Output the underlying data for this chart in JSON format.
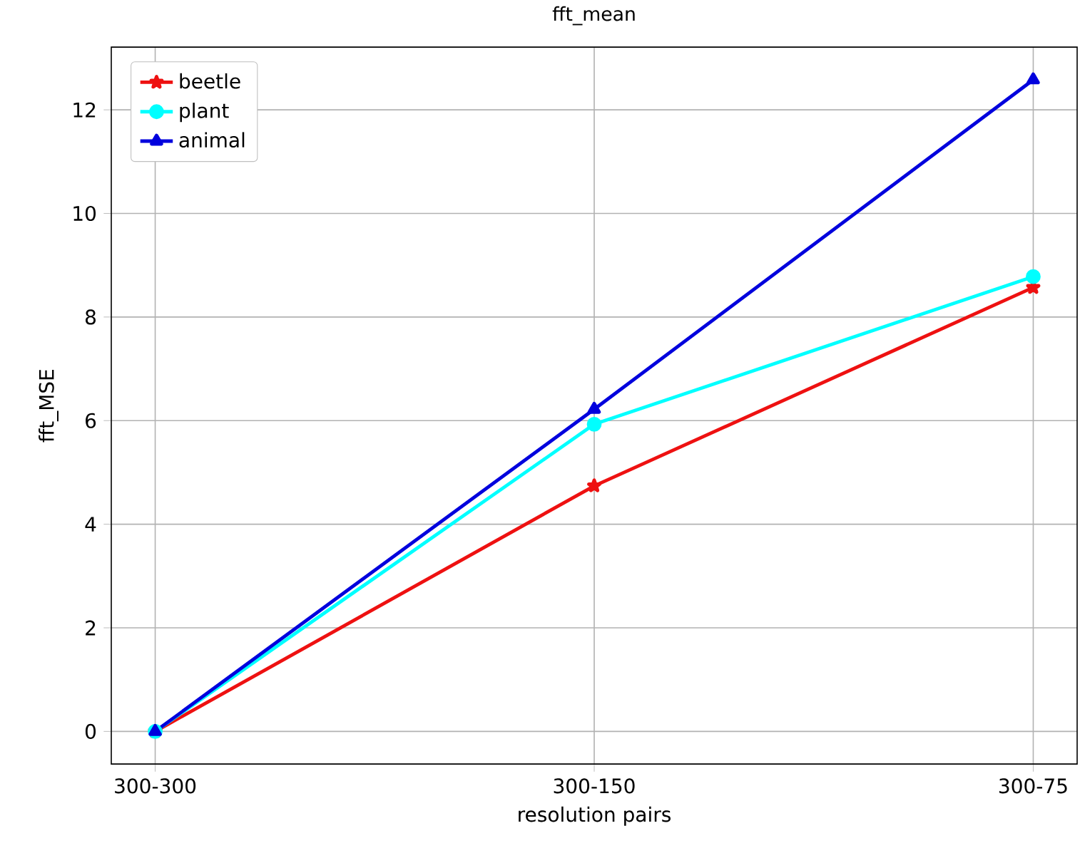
{
  "chart_data": {
    "type": "line",
    "title": "fft_mean",
    "xlabel": "resolution pairs",
    "ylabel": "fft_MSE",
    "categories": [
      "300-300",
      "300-150",
      "300-75"
    ],
    "series": [
      {
        "name": "beetle",
        "color": "#ee1111",
        "marker": "star",
        "values": [
          0,
          4.74,
          8.57
        ]
      },
      {
        "name": "plant",
        "color": "#00ffff",
        "marker": "circle",
        "values": [
          0,
          5.93,
          8.78
        ]
      },
      {
        "name": "animal",
        "color": "#0000dd",
        "marker": "triangle",
        "values": [
          0,
          6.22,
          12.58
        ]
      }
    ],
    "ylim": [
      -0.63,
      13.21
    ],
    "yticks": [
      0,
      2,
      4,
      6,
      8,
      10,
      12
    ],
    "grid": true,
    "legend": "top left",
    "line_style": "solid"
  }
}
